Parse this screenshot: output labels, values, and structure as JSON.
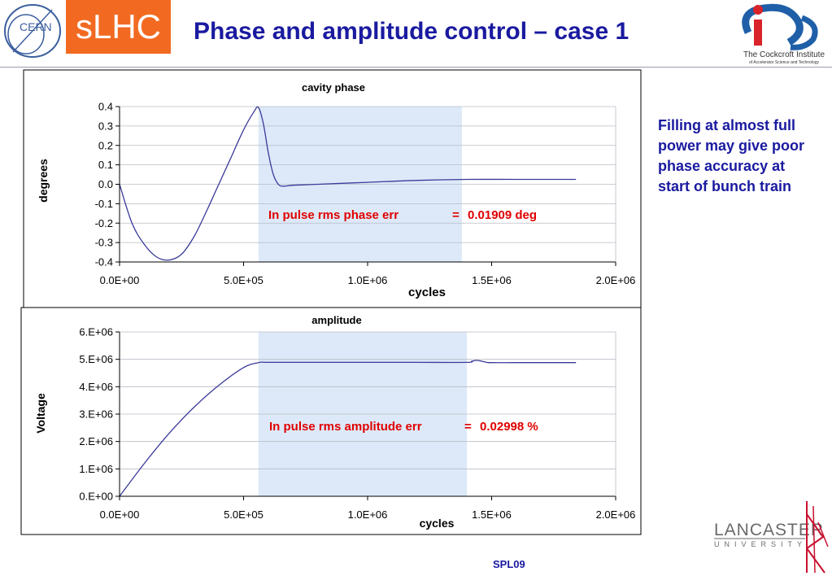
{
  "header": {
    "title": "Phase and amplitude control – case 1",
    "slhc_logo_text": "sLHC",
    "cern_logo_text": "CERN",
    "cockcroft_name": "The Cockcroft Institute",
    "cockcroft_sub": "of Accelerator Science and Technology"
  },
  "side_note": "Filling at almost full power may give poor phase accuracy at start of bunch train",
  "footer_label": "SPL09",
  "lancaster": {
    "top": "LANCASTER",
    "bottom": "UNIVERSITY"
  },
  "colors": {
    "title": "#1a1aa0",
    "accent_orange": "#f26a21",
    "line": "#3a3a9a",
    "band": "#dde9f8",
    "annotation": "#e00000"
  },
  "chart_data": [
    {
      "type": "line",
      "title": "cavity  phase",
      "xlabel": "cycles",
      "ylabel": "degrees",
      "xlim": [
        0,
        2000000
      ],
      "ylim": [
        -0.4,
        0.4
      ],
      "x_ticks": [
        "0.0E+00",
        "5.0E+05",
        "1.0E+06",
        "1.5E+06",
        "2.0E+06"
      ],
      "y_ticks": [
        "-0.4",
        "-0.3",
        "-0.2",
        "-0.1",
        "0.0",
        "0.1",
        "0.2",
        "0.3",
        "0.4"
      ],
      "grid": true,
      "highlight_band": [
        560000,
        1380000
      ],
      "annotation": {
        "label": "In pulse rms phase err",
        "eq": "=",
        "value": "0.01909 deg"
      },
      "series": [
        {
          "x": [
            0,
            50000,
            100000,
            150000,
            200000,
            250000,
            300000,
            350000,
            400000,
            450000,
            500000,
            540000,
            560000,
            580000,
            600000,
            620000,
            640000,
            660000,
            700000,
            800000,
            1000000,
            1200000,
            1400000,
            1600000,
            1840000
          ],
          "y": [
            0.0,
            -0.2,
            -0.31,
            -0.375,
            -0.39,
            -0.36,
            -0.27,
            -0.14,
            0.0,
            0.14,
            0.28,
            0.37,
            0.395,
            0.31,
            0.16,
            0.05,
            0.0,
            -0.01,
            -0.005,
            0.0,
            0.01,
            0.02,
            0.025,
            0.025,
            0.025
          ]
        }
      ]
    },
    {
      "type": "line",
      "title": "amplitude",
      "xlabel": "cycles",
      "ylabel": "Voltage",
      "xlim": [
        0,
        2000000
      ],
      "ylim": [
        0,
        6000000
      ],
      "x_ticks": [
        "0.0E+00",
        "5.0E+05",
        "1.0E+06",
        "1.5E+06",
        "2.0E+06"
      ],
      "y_ticks": [
        "0.E+00",
        "1.E+06",
        "2.E+06",
        "3.E+06",
        "4.E+06",
        "5.E+06",
        "6.E+06"
      ],
      "grid": true,
      "highlight_band": [
        560000,
        1400000
      ],
      "annotation": {
        "label": "In pulse rms amplitude err",
        "eq": "=",
        "value": "0.02998 %"
      },
      "series": [
        {
          "x": [
            0,
            100000,
            200000,
            300000,
            400000,
            500000,
            560000,
            600000,
            800000,
            1000000,
            1200000,
            1400000,
            1420000,
            1440000,
            1460000,
            1480000,
            1500000,
            1600000,
            1840000
          ],
          "y": [
            0,
            1200000,
            2300000,
            3250000,
            4050000,
            4700000,
            4880000,
            4890000,
            4890000,
            4890000,
            4890000,
            4890000,
            4930000,
            4960000,
            4930000,
            4890000,
            4880000,
            4880000,
            4880000
          ]
        }
      ]
    }
  ]
}
